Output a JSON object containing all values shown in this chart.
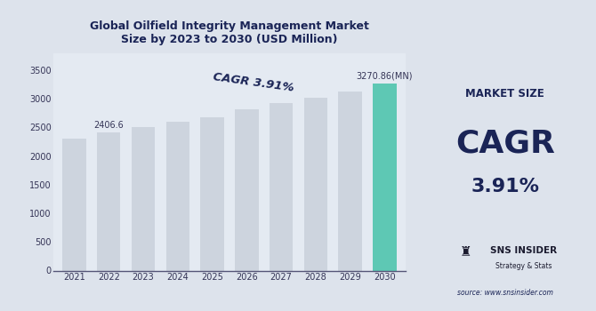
{
  "title": "Global Oilfield Integrity Management Market\nSize by 2023 to 2030 (USD Million)",
  "years": [
    2021,
    2022,
    2023,
    2024,
    2025,
    2026,
    2027,
    2028,
    2029,
    2030
  ],
  "values": [
    2310,
    2406.6,
    2500,
    2600,
    2680,
    2810,
    2920,
    3010,
    3120,
    3270.86
  ],
  "bar_colors": [
    "#cdd4de",
    "#cdd4de",
    "#cdd4de",
    "#cdd4de",
    "#cdd4de",
    "#cdd4de",
    "#cdd4de",
    "#cdd4de",
    "#cdd4de",
    "#5ec8b4"
  ],
  "bg_color": "#dde3ec",
  "right_panel_color": "#c8cdd8",
  "chart_bg": "#e4eaf2",
  "title_color": "#1a2456",
  "axis_color": "#333355",
  "cagr_label": "CAGR 3.91%",
  "cagr_color": "#1a2456",
  "label_2022": "2406.6",
  "label_2030": "3270.86(MN)",
  "market_size_text": "MARKET SIZE",
  "cagr_text": "CAGR",
  "cagr_value": "3.91%",
  "sns_text": "SNS INSIDER",
  "sns_sub": "Strategy & Stats",
  "source_text": "source: www.snsinsider.com",
  "ylim": [
    0,
    3800
  ],
  "yticks": [
    0,
    500,
    1000,
    1500,
    2000,
    2500,
    3000,
    3500
  ]
}
